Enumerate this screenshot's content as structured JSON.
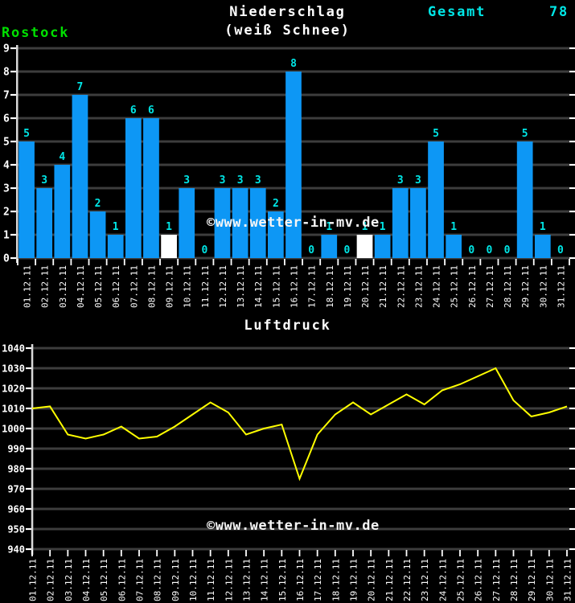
{
  "header": {
    "station": "Rostock",
    "title_line1": "Niederschlag",
    "title_line2": "(weiß Schnee)",
    "total_label": "Gesamt",
    "total_value": "78"
  },
  "watermark": "©www.wetter-in-mv.de",
  "colors": {
    "background": "#000000",
    "bar_blue": "#0D97F5",
    "bar_snow": "#FFFFFF",
    "value_label": "#00E6E6",
    "station_green": "#00DF00",
    "total_cyan": "#00E6E6",
    "grid": "#3D3D3D",
    "axis": "#D9D9D9",
    "tick": "#FFFFFF",
    "text": "#FFFFFF",
    "pressure_line": "#FFFF00"
  },
  "chart_data": [
    {
      "type": "bar",
      "title": "Niederschlag (weiß Schnee)",
      "total": 78,
      "categories": [
        "01.12.11",
        "02.12.11",
        "03.12.11",
        "04.12.11",
        "05.12.11",
        "06.12.11",
        "07.12.11",
        "08.12.11",
        "09.12.11",
        "10.12.11",
        "11.12.11",
        "12.12.11",
        "13.12.11",
        "14.12.11",
        "15.12.11",
        "16.12.11",
        "17.12.11",
        "18.12.11",
        "19.12.11",
        "20.12.11",
        "21.12.11",
        "22.12.11",
        "23.12.11",
        "24.12.11",
        "25.12.11",
        "26.12.11",
        "27.12.11",
        "28.12.11",
        "29.12.11",
        "30.12.11",
        "31.12.11"
      ],
      "values": [
        5,
        3,
        4,
        7,
        2,
        1,
        6,
        6,
        1,
        3,
        0,
        3,
        3,
        3,
        2,
        8,
        0,
        1,
        0,
        1,
        1,
        3,
        3,
        5,
        1,
        0,
        0,
        0,
        5,
        1,
        0
      ],
      "snow_days": [
        "09.12.11",
        "20.12.11"
      ],
      "ylim": [
        0,
        9
      ],
      "ytick_step": 1,
      "grid": true,
      "legend_position": "none"
    },
    {
      "type": "line",
      "title": "Luftdruck",
      "categories": [
        "01.12.11",
        "02.12.11",
        "03.12.11",
        "04.12.11",
        "05.12.11",
        "06.12.11",
        "07.12.11",
        "08.12.11",
        "09.12.11",
        "10.12.11",
        "11.12.11",
        "12.12.11",
        "13.12.11",
        "14.12.11",
        "15.12.11",
        "16.12.11",
        "17.12.11",
        "18.12.11",
        "19.12.11",
        "20.12.11",
        "21.12.11",
        "22.12.11",
        "23.12.11",
        "24.12.11",
        "25.12.11",
        "26.12.11",
        "27.12.11",
        "28.12.11",
        "29.12.11",
        "30.12.11",
        "31.12.11"
      ],
      "values": [
        1010,
        1011,
        997,
        995,
        997,
        1001,
        995,
        996,
        1001,
        1007,
        1013,
        1008,
        997,
        1000,
        1002,
        975,
        997,
        1007,
        1013,
        1007,
        1012,
        1017,
        1012,
        1019,
        1022,
        1026,
        1030,
        1014,
        1006,
        1008,
        1011
      ],
      "ylim": [
        940,
        1040
      ],
      "ytick_step": 10,
      "grid": true,
      "legend_position": "none"
    }
  ]
}
